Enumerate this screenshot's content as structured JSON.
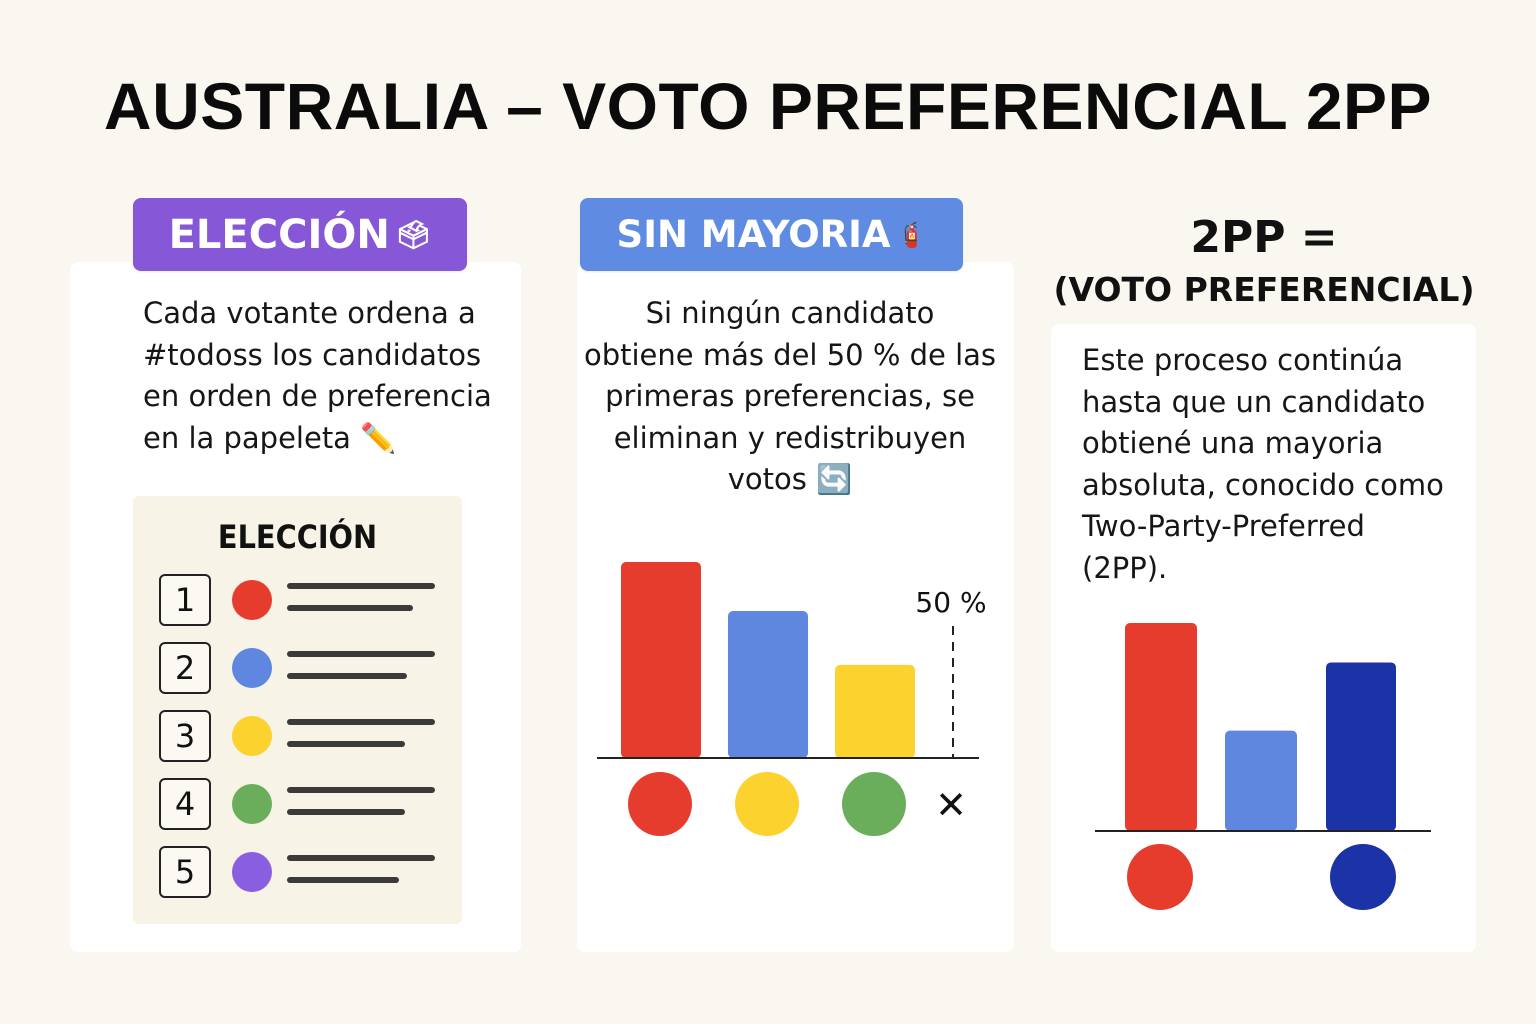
{
  "title": "AUSTRALIA – VOTO PREFERENCIAL 2PP",
  "colors": {
    "red": "#e63c2e",
    "blue": "#5f87e0",
    "yellow": "#fbd22e",
    "green": "#6aad5b",
    "purple": "#8a5ee0",
    "dark_blue": "#1b33a6",
    "pill_purple": "#8657d6",
    "pill_blue": "#5f8ce2"
  },
  "panel1": {
    "pill_label": "ELECCIÓN",
    "pill_icon": "🗳",
    "text_lines": [
      "Cada votante ordena a",
      "#todoss los candidatos",
      "en orden de preferencia",
      "en la papeleta ✏️"
    ],
    "ballot": {
      "title": "ELECCIÓN",
      "rows": [
        {
          "number": "1",
          "color": "#e63c2e"
        },
        {
          "number": "2",
          "color": "#5f87e0"
        },
        {
          "number": "3",
          "color": "#fbd22e"
        },
        {
          "number": "4",
          "color": "#6aad5b"
        },
        {
          "number": "5",
          "color": "#8a5ee0"
        }
      ]
    }
  },
  "panel2": {
    "pill_label": "SIN MAYORIA",
    "pill_icon": "🧯",
    "text_lines": [
      "Si ningún candidato",
      "obtiene más del 50 % de las",
      "primeras preferencias, se",
      "eliminan y redistribuyen",
      "votos 🔄"
    ],
    "threshold_label": "50 %",
    "eliminated_mark": "✕"
  },
  "panel3": {
    "heading_line1": "2PP =",
    "heading_line2": "(VOTO PREFERENCIAL)",
    "text_lines": [
      "Este proceso continúa",
      "hasta que un candidato",
      "obtiené una mayoria",
      "absoluta, conocido como",
      "Two-Party-Preferred",
      "(2PP)."
    ]
  },
  "chart_data": [
    {
      "type": "bar",
      "categories": [
        "red",
        "blue",
        "yellow"
      ],
      "values": [
        40,
        30,
        19
      ],
      "colors": [
        "#e63c2e",
        "#5f87e0",
        "#fbd22e"
      ],
      "threshold": 50,
      "ylim": [
        0,
        40
      ],
      "markers": [
        "#e63c2e",
        "#fbd22e",
        "#6aad5b"
      ]
    },
    {
      "type": "bar",
      "categories": [
        "red",
        "blue",
        "dark blue"
      ],
      "values": [
        58,
        28,
        47
      ],
      "colors": [
        "#e63c2e",
        "#5f87e0",
        "#1b33a6"
      ],
      "ylim": [
        0,
        58
      ],
      "markers": [
        "#e63c2e",
        "#1b33a6"
      ]
    }
  ]
}
